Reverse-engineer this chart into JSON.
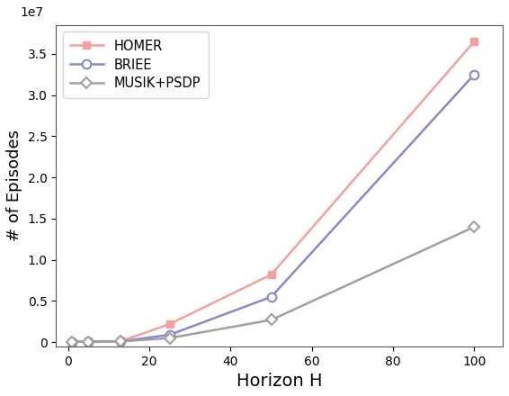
{
  "title": "",
  "xlabel": "Horizon H",
  "ylabel": "# of Episodes",
  "x_values": [
    1,
    5,
    13,
    25,
    50,
    100
  ],
  "homer_y": [
    50000,
    80000,
    120000,
    2200000,
    8200000,
    36500000
  ],
  "briee_y": [
    40000,
    70000,
    100000,
    900000,
    5500000,
    32500000
  ],
  "musik_y": [
    30000,
    60000,
    90000,
    500000,
    2700000,
    14000000
  ],
  "homer_color": "#f4a0a0",
  "briee_color": "#8888cc",
  "musik_color": "#a0a0a0",
  "homer_marker": "s",
  "briee_marker": "o",
  "musik_marker": "D",
  "legend_labels": [
    "HOMER",
    "BRIEE",
    "MUSIK+PSDP"
  ],
  "ylim": [
    -500000,
    38500000
  ],
  "xlim": [
    -3,
    107
  ],
  "xticks": [
    0,
    20,
    40,
    60,
    80,
    100
  ],
  "yticks": [
    0,
    5000000,
    10000000,
    15000000,
    20000000,
    25000000,
    30000000,
    35000000
  ],
  "figsize": [
    5.66,
    4.4
  ],
  "dpi": 100
}
